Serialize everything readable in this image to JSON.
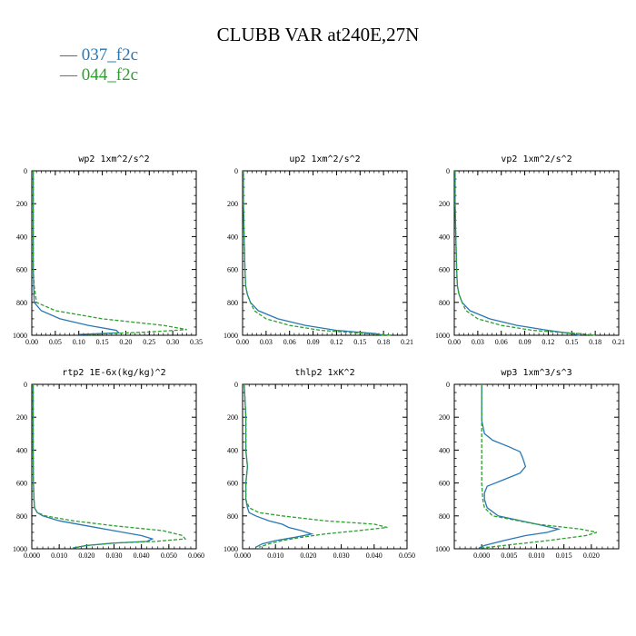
{
  "title": "CLUBB VAR at240E,27N",
  "legend": [
    {
      "name": "037_f2c",
      "color": "#2878b4"
    },
    {
      "name": "044_f2c",
      "color": "#2ca02c"
    }
  ],
  "chart_data": [
    {
      "type": "line",
      "title": "wp2  1xm^2/s^2",
      "xlim": [
        0,
        0.35
      ],
      "ylim": [
        1000,
        0
      ],
      "xticks": [
        "0.00",
        "0.05",
        "0.10",
        "0.15",
        "0.20",
        "0.25",
        "0.30",
        "0.35"
      ],
      "yticks": [
        "0",
        "200",
        "400",
        "600",
        "800",
        "1000"
      ],
      "series": [
        {
          "name": "037_f2c",
          "y": [
            0,
            200,
            400,
            600,
            700,
            800,
            850,
            900,
            940,
            970,
            985,
            995
          ],
          "x": [
            0.003,
            0.003,
            0.003,
            0.003,
            0.004,
            0.005,
            0.02,
            0.06,
            0.12,
            0.18,
            0.185,
            0.1
          ]
        },
        {
          "name": "044_f2c",
          "y": [
            0,
            200,
            400,
            600,
            700,
            800,
            850,
            900,
            940,
            965,
            980,
            995
          ],
          "x": [
            0.003,
            0.003,
            0.003,
            0.003,
            0.005,
            0.01,
            0.05,
            0.15,
            0.28,
            0.33,
            0.25,
            0.12
          ]
        }
      ]
    },
    {
      "type": "line",
      "title": "up2  1xm^2/s^2",
      "xlim": [
        0,
        0.21
      ],
      "ylim": [
        1000,
        0
      ],
      "xticks": [
        "0.00",
        "0.03",
        "0.06",
        "0.09",
        "0.12",
        "0.15",
        "0.18",
        "0.21"
      ],
      "yticks": [
        "0",
        "200",
        "400",
        "600",
        "800",
        "1000"
      ],
      "series": [
        {
          "name": "037_f2c",
          "y": [
            0,
            200,
            400,
            600,
            700,
            750,
            800,
            850,
            900,
            940,
            970,
            990,
            1000
          ],
          "x": [
            0.001,
            0.001,
            0.002,
            0.003,
            0.004,
            0.006,
            0.01,
            0.02,
            0.045,
            0.08,
            0.12,
            0.17,
            0.18
          ]
        },
        {
          "name": "044_f2c",
          "y": [
            0,
            200,
            400,
            600,
            700,
            750,
            800,
            850,
            900,
            940,
            970,
            990,
            1000
          ],
          "x": [
            0.001,
            0.001,
            0.002,
            0.003,
            0.004,
            0.006,
            0.01,
            0.015,
            0.03,
            0.06,
            0.1,
            0.16,
            0.19
          ]
        }
      ]
    },
    {
      "type": "line",
      "title": "vp2  1xm^2/s^2",
      "xlim": [
        0,
        0.21
      ],
      "ylim": [
        1000,
        0
      ],
      "xticks": [
        "0.00",
        "0.03",
        "0.06",
        "0.09",
        "0.12",
        "0.15",
        "0.18",
        "0.21"
      ],
      "yticks": [
        "0",
        "200",
        "400",
        "600",
        "800",
        "1000"
      ],
      "series": [
        {
          "name": "037_f2c",
          "y": [
            0,
            200,
            400,
            600,
            700,
            750,
            800,
            850,
            900,
            940,
            970,
            990,
            1000
          ],
          "x": [
            0.001,
            0.001,
            0.002,
            0.003,
            0.004,
            0.006,
            0.01,
            0.02,
            0.045,
            0.08,
            0.12,
            0.15,
            0.16
          ]
        },
        {
          "name": "044_f2c",
          "y": [
            0,
            200,
            400,
            600,
            700,
            750,
            800,
            850,
            900,
            940,
            970,
            990,
            1000
          ],
          "x": [
            0.001,
            0.001,
            0.002,
            0.003,
            0.004,
            0.006,
            0.01,
            0.015,
            0.03,
            0.06,
            0.1,
            0.16,
            0.18
          ]
        }
      ]
    },
    {
      "type": "line",
      "title": "rtp2  1E-6x(kg/kg)^2",
      "xlim": [
        0,
        0.06
      ],
      "ylim": [
        1000,
        0
      ],
      "xticks": [
        "0.000",
        "0.010",
        "0.020",
        "0.030",
        "0.040",
        "0.050",
        "0.060"
      ],
      "yticks": [
        "0",
        "200",
        "400",
        "600",
        "800",
        "1000"
      ],
      "series": [
        {
          "name": "037_f2c",
          "y": [
            0,
            200,
            400,
            600,
            700,
            750,
            780,
            800,
            830,
            860,
            890,
            920,
            940,
            955,
            965,
            980,
            995
          ],
          "x": [
            0.0005,
            0.0005,
            0.0005,
            0.0006,
            0.0008,
            0.001,
            0.002,
            0.004,
            0.01,
            0.02,
            0.03,
            0.04,
            0.044,
            0.042,
            0.03,
            0.02,
            0.015
          ]
        },
        {
          "name": "044_f2c",
          "y": [
            0,
            200,
            400,
            600,
            700,
            750,
            780,
            800,
            830,
            860,
            890,
            920,
            940,
            955,
            965,
            980,
            995
          ],
          "x": [
            0.0005,
            0.0005,
            0.0005,
            0.0006,
            0.0008,
            0.001,
            0.002,
            0.005,
            0.015,
            0.03,
            0.048,
            0.055,
            0.056,
            0.045,
            0.03,
            0.02,
            0.015
          ]
        }
      ]
    },
    {
      "type": "line",
      "title": "thlp2  1xK^2",
      "xlim": [
        0,
        0.05
      ],
      "ylim": [
        1000,
        0
      ],
      "xticks": [
        "0.000",
        "0.010",
        "0.020",
        "0.030",
        "0.040",
        "0.050"
      ],
      "yticks": [
        "0",
        "200",
        "400",
        "600",
        "800",
        "1000"
      ],
      "series": [
        {
          "name": "037_f2c",
          "y": [
            0,
            200,
            400,
            500,
            600,
            700,
            750,
            780,
            800,
            830,
            850,
            870,
            890,
            910,
            930,
            950,
            970,
            990
          ],
          "x": [
            0.0005,
            0.001,
            0.001,
            0.0015,
            0.001,
            0.001,
            0.0015,
            0.002,
            0.004,
            0.008,
            0.012,
            0.014,
            0.018,
            0.021,
            0.016,
            0.01,
            0.006,
            0.004
          ]
        },
        {
          "name": "044_f2c",
          "y": [
            0,
            200,
            400,
            500,
            600,
            700,
            750,
            780,
            800,
            830,
            850,
            870,
            890,
            910,
            930,
            950,
            970,
            990
          ],
          "x": [
            0.0005,
            0.001,
            0.001,
            0.0015,
            0.001,
            0.001,
            0.002,
            0.005,
            0.012,
            0.025,
            0.04,
            0.044,
            0.035,
            0.025,
            0.018,
            0.012,
            0.008,
            0.005
          ]
        }
      ]
    },
    {
      "type": "line",
      "title": "wp3  1xm^3/s^3",
      "xlim": [
        -0.005,
        0.025
      ],
      "ylim": [
        1000,
        0
      ],
      "xticks": [
        "0.000",
        "0.005",
        "0.010",
        "0.015",
        "0.020"
      ],
      "yticks": [
        "0",
        "200",
        "400",
        "600",
        "800",
        "1000"
      ],
      "series": [
        {
          "name": "037_f2c",
          "y": [
            0,
            200,
            220,
            300,
            340,
            380,
            410,
            450,
            500,
            540,
            580,
            620,
            660,
            700,
            750,
            800,
            850,
            880,
            900,
            920,
            950,
            980,
            995
          ],
          "x": [
            0.0,
            0.0,
            0.0,
            0.0005,
            0.002,
            0.005,
            0.007,
            0.0075,
            0.008,
            0.007,
            0.004,
            0.001,
            0.0005,
            0.0005,
            0.001,
            0.003,
            0.01,
            0.014,
            0.012,
            0.008,
            0.004,
            0.0005,
            -0.0005
          ]
        },
        {
          "name": "044_f2c",
          "y": [
            0,
            200,
            400,
            600,
            700,
            750,
            800,
            850,
            880,
            900,
            920,
            950,
            980,
            995
          ],
          "x": [
            0.0,
            0.0,
            0.0,
            0.0,
            0.0002,
            0.0005,
            0.002,
            0.01,
            0.018,
            0.021,
            0.019,
            0.012,
            0.004,
            0.0
          ]
        }
      ]
    }
  ]
}
